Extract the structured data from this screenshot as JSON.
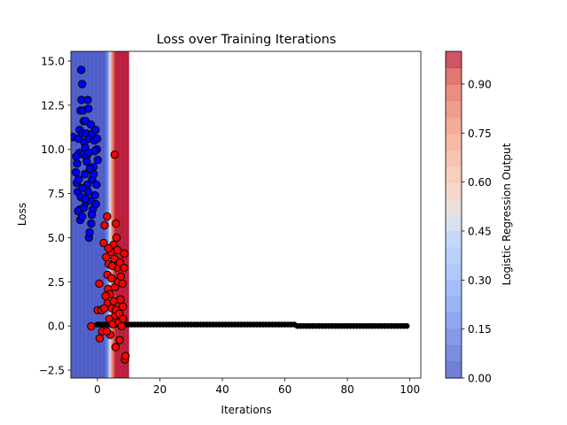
{
  "chart_data": [
    {
      "type": "scatter",
      "title": "Loss over Training Iterations",
      "xlabel": "Iterations",
      "ylabel": "Loss",
      "xlim": [
        -8.5,
        103.5
      ],
      "ylim": [
        -2.95,
        15.55
      ],
      "x_ticks": [
        0,
        20,
        40,
        60,
        80,
        100
      ],
      "x_tick_labels": [
        "0",
        "20",
        "40",
        "60",
        "80",
        "100"
      ],
      "y_ticks": [
        -2.5,
        0.0,
        2.5,
        5.0,
        7.5,
        10.0,
        12.5,
        15.0
      ],
      "y_tick_labels": [
        "−2.5",
        "0.0",
        "2.5",
        "5.0",
        "7.5",
        "10.0",
        "12.5",
        "15.0"
      ],
      "grid": false,
      "legend": "none",
      "background": {
        "type": "contourf",
        "description": "logistic regression decision surface",
        "x_range": [
          -8.5,
          10
        ],
        "transition_x": 4.0,
        "colormap": "coolwarm"
      },
      "series": [
        {
          "marker_color": "#0000ff",
          "edge_color": "#000000",
          "points": [
            [
              -7.9,
              10.7
            ],
            [
              -6.6,
              8.1
            ],
            [
              -6.3,
              7.6
            ],
            [
              -6.5,
              9.2
            ],
            [
              -6.0,
              8.3
            ],
            [
              -5.8,
              9.8
            ],
            [
              -6.1,
              10.6
            ],
            [
              -5.7,
              11.1
            ],
            [
              -5.4,
              12.2
            ],
            [
              -5.2,
              14.5
            ],
            [
              -4.9,
              13.7
            ],
            [
              -5.1,
              12.8
            ],
            [
              -4.6,
              12.2
            ],
            [
              -4.4,
              11.6
            ],
            [
              -4.8,
              10.9
            ],
            [
              -4.2,
              10.4
            ],
            [
              -4.5,
              9.7
            ],
            [
              -3.9,
              10.1
            ],
            [
              -3.8,
              11.6
            ],
            [
              -3.6,
              10.9
            ],
            [
              -3.5,
              9.6
            ],
            [
              -3.1,
              12.8
            ],
            [
              -2.9,
              12.3
            ],
            [
              -2.6,
              10.6
            ],
            [
              -2.1,
              11.4
            ],
            [
              -1.6,
              10.9
            ],
            [
              -1.0,
              10.5
            ],
            [
              -0.2,
              10.0
            ],
            [
              -0.9,
              9.9
            ],
            [
              -1.3,
              9.0
            ],
            [
              -1.7,
              8.3
            ],
            [
              -2.4,
              8.9
            ],
            [
              -3.2,
              8.0
            ],
            [
              -4.0,
              8.6
            ],
            [
              -4.7,
              7.8
            ],
            [
              -5.3,
              7.3
            ],
            [
              -5.6,
              6.6
            ],
            [
              -6.2,
              6.5
            ],
            [
              -5.5,
              6.0
            ],
            [
              -4.9,
              6.2
            ],
            [
              -4.3,
              6.7
            ],
            [
              -3.7,
              7.0
            ],
            [
              -3.0,
              7.6
            ],
            [
              -2.3,
              7.1
            ],
            [
              -1.5,
              6.6
            ],
            [
              -0.8,
              7.4
            ],
            [
              -0.3,
              8.0
            ],
            [
              0.1,
              9.4
            ],
            [
              -0.1,
              10.6
            ],
            [
              -0.6,
              11.1
            ],
            [
              -2.7,
              5.0
            ],
            [
              -2.5,
              5.3
            ],
            [
              -2.0,
              5.8
            ],
            [
              -1.8,
              6.3
            ],
            [
              -6.8,
              9.6
            ],
            [
              -6.9,
              8.7
            ],
            [
              -3.4,
              9.3
            ],
            [
              -2.8,
              9.8
            ],
            [
              -1.2,
              8.6
            ],
            [
              -0.5,
              6.9
            ],
            [
              -3.9,
              7.2
            ]
          ]
        },
        {
          "marker_color": "#ff0000",
          "edge_color": "#000000",
          "points": [
            [
              -2.0,
              -0.02
            ],
            [
              0.6,
              2.4
            ],
            [
              0.1,
              0.9
            ],
            [
              1.3,
              0.9
            ],
            [
              0.7,
              -0.7
            ],
            [
              1.5,
              -0.3
            ],
            [
              2.0,
              4.7
            ],
            [
              2.3,
              5.7
            ],
            [
              2.8,
              3.9
            ],
            [
              3.1,
              6.2
            ],
            [
              3.2,
              2.9
            ],
            [
              3.4,
              2.1
            ],
            [
              3.6,
              3.5
            ],
            [
              3.3,
              1.3
            ],
            [
              3.8,
              0.4
            ],
            [
              4.1,
              -0.5
            ],
            [
              4.3,
              4.2
            ],
            [
              4.5,
              2.7
            ],
            [
              4.0,
              1.8
            ],
            [
              4.6,
              1.0
            ],
            [
              4.9,
              0.1
            ],
            [
              5.1,
              4.6
            ],
            [
              5.4,
              3.8
            ],
            [
              5.6,
              2.2
            ],
            [
              5.2,
              1.4
            ],
            [
              5.7,
              0.6
            ],
            [
              5.8,
              -1.2
            ],
            [
              6.1,
              5.0
            ],
            [
              6.3,
              3.3
            ],
            [
              6.6,
              2.5
            ],
            [
              6.0,
              0.9
            ],
            [
              6.8,
              0.2
            ],
            [
              7.1,
              -0.8
            ],
            [
              7.2,
              3.6
            ],
            [
              7.5,
              2.8
            ],
            [
              7.4,
              1.5
            ],
            [
              7.7,
              0.0
            ],
            [
              8.0,
              2.4
            ],
            [
              8.1,
              1.1
            ],
            [
              8.5,
              3.3
            ],
            [
              8.6,
              4.1
            ],
            [
              8.8,
              -1.9
            ],
            [
              9.0,
              -1.7
            ],
            [
              2.6,
              1.7
            ],
            [
              3.0,
              -0.3
            ],
            [
              5.9,
              5.8
            ],
            [
              6.4,
              4.3
            ],
            [
              4.7,
              3.4
            ],
            [
              3.5,
              4.4
            ],
            [
              7.0,
              0.7
            ],
            [
              5.5,
              9.7
            ],
            [
              2.2,
              1.0
            ],
            [
              8.2,
              0.4
            ]
          ]
        },
        {
          "marker_color": "#000000",
          "edge_color": "#000000",
          "x": [
            0,
            1,
            2,
            3,
            4,
            5,
            6,
            7,
            8,
            9,
            10,
            11,
            12,
            13,
            14,
            15,
            16,
            17,
            18,
            19,
            20,
            21,
            22,
            23,
            24,
            25,
            26,
            27,
            28,
            29,
            30,
            31,
            32,
            33,
            34,
            35,
            36,
            37,
            38,
            39,
            40,
            41,
            42,
            43,
            44,
            45,
            46,
            47,
            48,
            49,
            50,
            51,
            52,
            53,
            54,
            55,
            56,
            57,
            58,
            59,
            60,
            61,
            62,
            63,
            64,
            65,
            66,
            67,
            68,
            69,
            70,
            71,
            72,
            73,
            74,
            75,
            76,
            77,
            78,
            79,
            80,
            81,
            82,
            83,
            84,
            85,
            86,
            87,
            88,
            89,
            90,
            91,
            92,
            93,
            94,
            95,
            96,
            97,
            98,
            99
          ],
          "y_early": 0.08,
          "y_late": 0.0,
          "drop_at": 64
        }
      ],
      "colorbar": {
        "label": "Logistic Regression Output",
        "ticks": [
          0.0,
          0.15,
          0.3,
          0.45,
          0.6,
          0.75,
          0.9
        ],
        "tick_labels": [
          "0.00",
          "0.15",
          "0.30",
          "0.45",
          "0.60",
          "0.75",
          "0.90"
        ],
        "range": [
          0.0,
          1.0
        ],
        "levels": 20,
        "colormap": "coolwarm"
      }
    }
  ]
}
